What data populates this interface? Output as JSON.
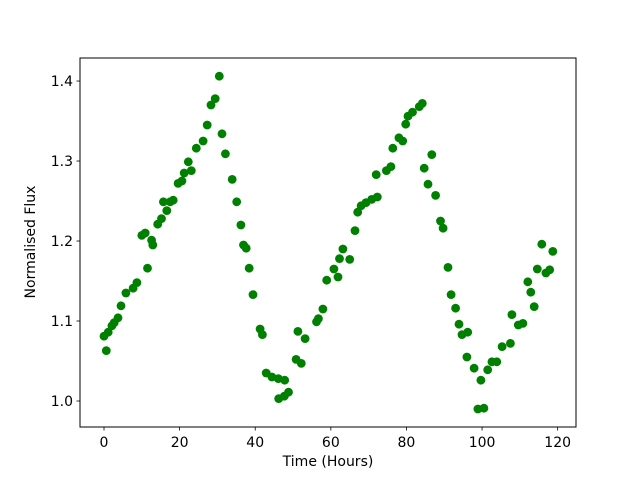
{
  "chart_data": {
    "type": "scatter",
    "title": "",
    "xlabel": "Time (Hours)",
    "ylabel": "Normalised Flux",
    "marker_color": "#008000",
    "marker_radius_px": 4.4,
    "grid": false,
    "legend_position": "none",
    "xlim": [
      -6.35,
      124.85
    ],
    "ylim": [
      0.9675,
      1.4288
    ],
    "x_ticks": [
      0,
      20,
      40,
      60,
      80,
      100,
      120
    ],
    "x_tick_labels": [
      "0",
      "20",
      "40",
      "60",
      "80",
      "100",
      "120"
    ],
    "y_ticks": [
      1.0,
      1.1,
      1.2,
      1.3,
      1.4
    ],
    "y_tick_labels": [
      "1.0",
      "1.1",
      "1.2",
      "1.3",
      "1.4"
    ],
    "points": [
      [
        0.0,
        1.081
      ],
      [
        0.6,
        1.063
      ],
      [
        1.1,
        1.086
      ],
      [
        2.1,
        1.094
      ],
      [
        2.7,
        1.098
      ],
      [
        3.7,
        1.104
      ],
      [
        4.5,
        1.119
      ],
      [
        5.8,
        1.135
      ],
      [
        7.7,
        1.141
      ],
      [
        8.7,
        1.148
      ],
      [
        10.0,
        1.207
      ],
      [
        10.9,
        1.21
      ],
      [
        11.5,
        1.166
      ],
      [
        12.6,
        1.201
      ],
      [
        12.9,
        1.195
      ],
      [
        14.2,
        1.221
      ],
      [
        15.2,
        1.228
      ],
      [
        15.7,
        1.249
      ],
      [
        16.6,
        1.238
      ],
      [
        17.5,
        1.249
      ],
      [
        18.3,
        1.251
      ],
      [
        19.6,
        1.272
      ],
      [
        20.6,
        1.275
      ],
      [
        21.2,
        1.285
      ],
      [
        22.3,
        1.299
      ],
      [
        23.1,
        1.288
      ],
      [
        24.4,
        1.316
      ],
      [
        26.2,
        1.325
      ],
      [
        27.3,
        1.345
      ],
      [
        28.3,
        1.37
      ],
      [
        29.4,
        1.378
      ],
      [
        30.5,
        1.406
      ],
      [
        31.2,
        1.334
      ],
      [
        32.1,
        1.309
      ],
      [
        33.9,
        1.277
      ],
      [
        35.1,
        1.249
      ],
      [
        36.2,
        1.22
      ],
      [
        36.9,
        1.195
      ],
      [
        37.6,
        1.191
      ],
      [
        38.4,
        1.166
      ],
      [
        39.4,
        1.133
      ],
      [
        41.3,
        1.09
      ],
      [
        41.9,
        1.083
      ],
      [
        42.9,
        1.035
      ],
      [
        44.4,
        1.03
      ],
      [
        46.1,
        1.028
      ],
      [
        46.2,
        1.003
      ],
      [
        47.7,
        1.006
      ],
      [
        47.8,
        1.026
      ],
      [
        48.8,
        1.011
      ],
      [
        50.8,
        1.052
      ],
      [
        51.3,
        1.087
      ],
      [
        52.2,
        1.047
      ],
      [
        53.2,
        1.078
      ],
      [
        56.2,
        1.099
      ],
      [
        56.7,
        1.103
      ],
      [
        57.9,
        1.115
      ],
      [
        58.9,
        1.151
      ],
      [
        60.8,
        1.165
      ],
      [
        61.9,
        1.155
      ],
      [
        62.3,
        1.178
      ],
      [
        63.2,
        1.19
      ],
      [
        65.0,
        1.177
      ],
      [
        66.4,
        1.213
      ],
      [
        67.1,
        1.236
      ],
      [
        68.0,
        1.244
      ],
      [
        69.3,
        1.248
      ],
      [
        70.8,
        1.252
      ],
      [
        72.0,
        1.283
      ],
      [
        72.3,
        1.255
      ],
      [
        74.7,
        1.288
      ],
      [
        75.9,
        1.293
      ],
      [
        76.4,
        1.316
      ],
      [
        78.0,
        1.329
      ],
      [
        79.0,
        1.325
      ],
      [
        79.8,
        1.346
      ],
      [
        80.4,
        1.356
      ],
      [
        81.6,
        1.361
      ],
      [
        83.4,
        1.368
      ],
      [
        84.2,
        1.372
      ],
      [
        84.7,
        1.291
      ],
      [
        85.7,
        1.271
      ],
      [
        86.7,
        1.308
      ],
      [
        87.7,
        1.257
      ],
      [
        89.0,
        1.225
      ],
      [
        89.7,
        1.216
      ],
      [
        91.0,
        1.167
      ],
      [
        91.8,
        1.133
      ],
      [
        93.0,
        1.116
      ],
      [
        93.9,
        1.096
      ],
      [
        94.7,
        1.083
      ],
      [
        96.0,
        1.055
      ],
      [
        96.2,
        1.086
      ],
      [
        97.9,
        1.041
      ],
      [
        98.9,
        0.99
      ],
      [
        99.7,
        1.026
      ],
      [
        100.5,
        0.991
      ],
      [
        101.5,
        1.039
      ],
      [
        102.6,
        1.049
      ],
      [
        103.9,
        1.049
      ],
      [
        105.3,
        1.068
      ],
      [
        107.5,
        1.072
      ],
      [
        107.9,
        1.108
      ],
      [
        109.6,
        1.095
      ],
      [
        110.8,
        1.097
      ],
      [
        112.1,
        1.149
      ],
      [
        112.9,
        1.136
      ],
      [
        113.8,
        1.118
      ],
      [
        114.6,
        1.165
      ],
      [
        115.8,
        1.196
      ],
      [
        116.9,
        1.16
      ],
      [
        117.9,
        1.164
      ],
      [
        118.7,
        1.187
      ]
    ]
  },
  "style": {
    "background": "#ffffff",
    "frame_color": "#000000",
    "text_color": "#000000"
  }
}
